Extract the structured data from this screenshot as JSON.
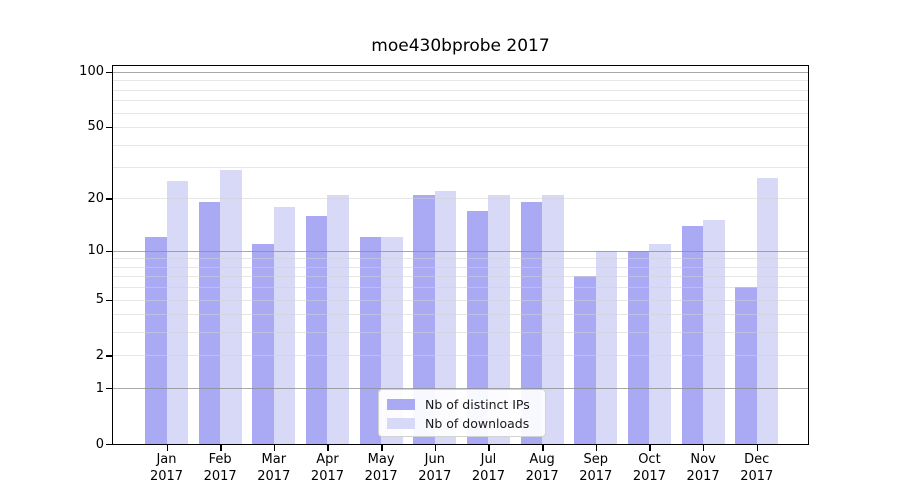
{
  "chart_data": {
    "type": "bar",
    "title": "moe430bprobe 2017",
    "categories": [
      "Jan",
      "Feb",
      "Mar",
      "Apr",
      "May",
      "Jun",
      "Jul",
      "Aug",
      "Sep",
      "Oct",
      "Nov",
      "Dec"
    ],
    "category_sublabel": "2017",
    "series": [
      {
        "name": "Nb of distinct IPs",
        "color": "#a9a9f4",
        "values": [
          12,
          19,
          11,
          16,
          12,
          21,
          17,
          19,
          7,
          10,
          14,
          6
        ]
      },
      {
        "name": "Nb of downloads",
        "color": "#d8d8f7",
        "values": [
          25,
          29,
          18,
          21,
          12,
          22,
          21,
          21,
          10,
          11,
          15,
          26
        ]
      }
    ],
    "yscale": "log1p",
    "ylim": [
      0,
      107.6
    ],
    "y_tick_values": [
      0,
      1,
      2,
      5,
      10,
      20,
      50,
      100
    ],
    "y_tick_labels": [
      "0",
      "1",
      "2",
      "5",
      "10",
      "20",
      "50",
      "100"
    ],
    "major_gridlines": [
      1,
      10,
      100
    ],
    "minor_gridlines": [
      2,
      3,
      4,
      5,
      6,
      7,
      8,
      9,
      20,
      30,
      40,
      50,
      60,
      70,
      80,
      90
    ],
    "grid": "horizontal",
    "legend_position": "lower center",
    "colors": {
      "bar_dark": "#a9a9f4",
      "bar_light": "#d8d8f7",
      "grid_minor": "#e9e9e9",
      "grid_major": "#ababab",
      "frame": "#000000"
    }
  }
}
